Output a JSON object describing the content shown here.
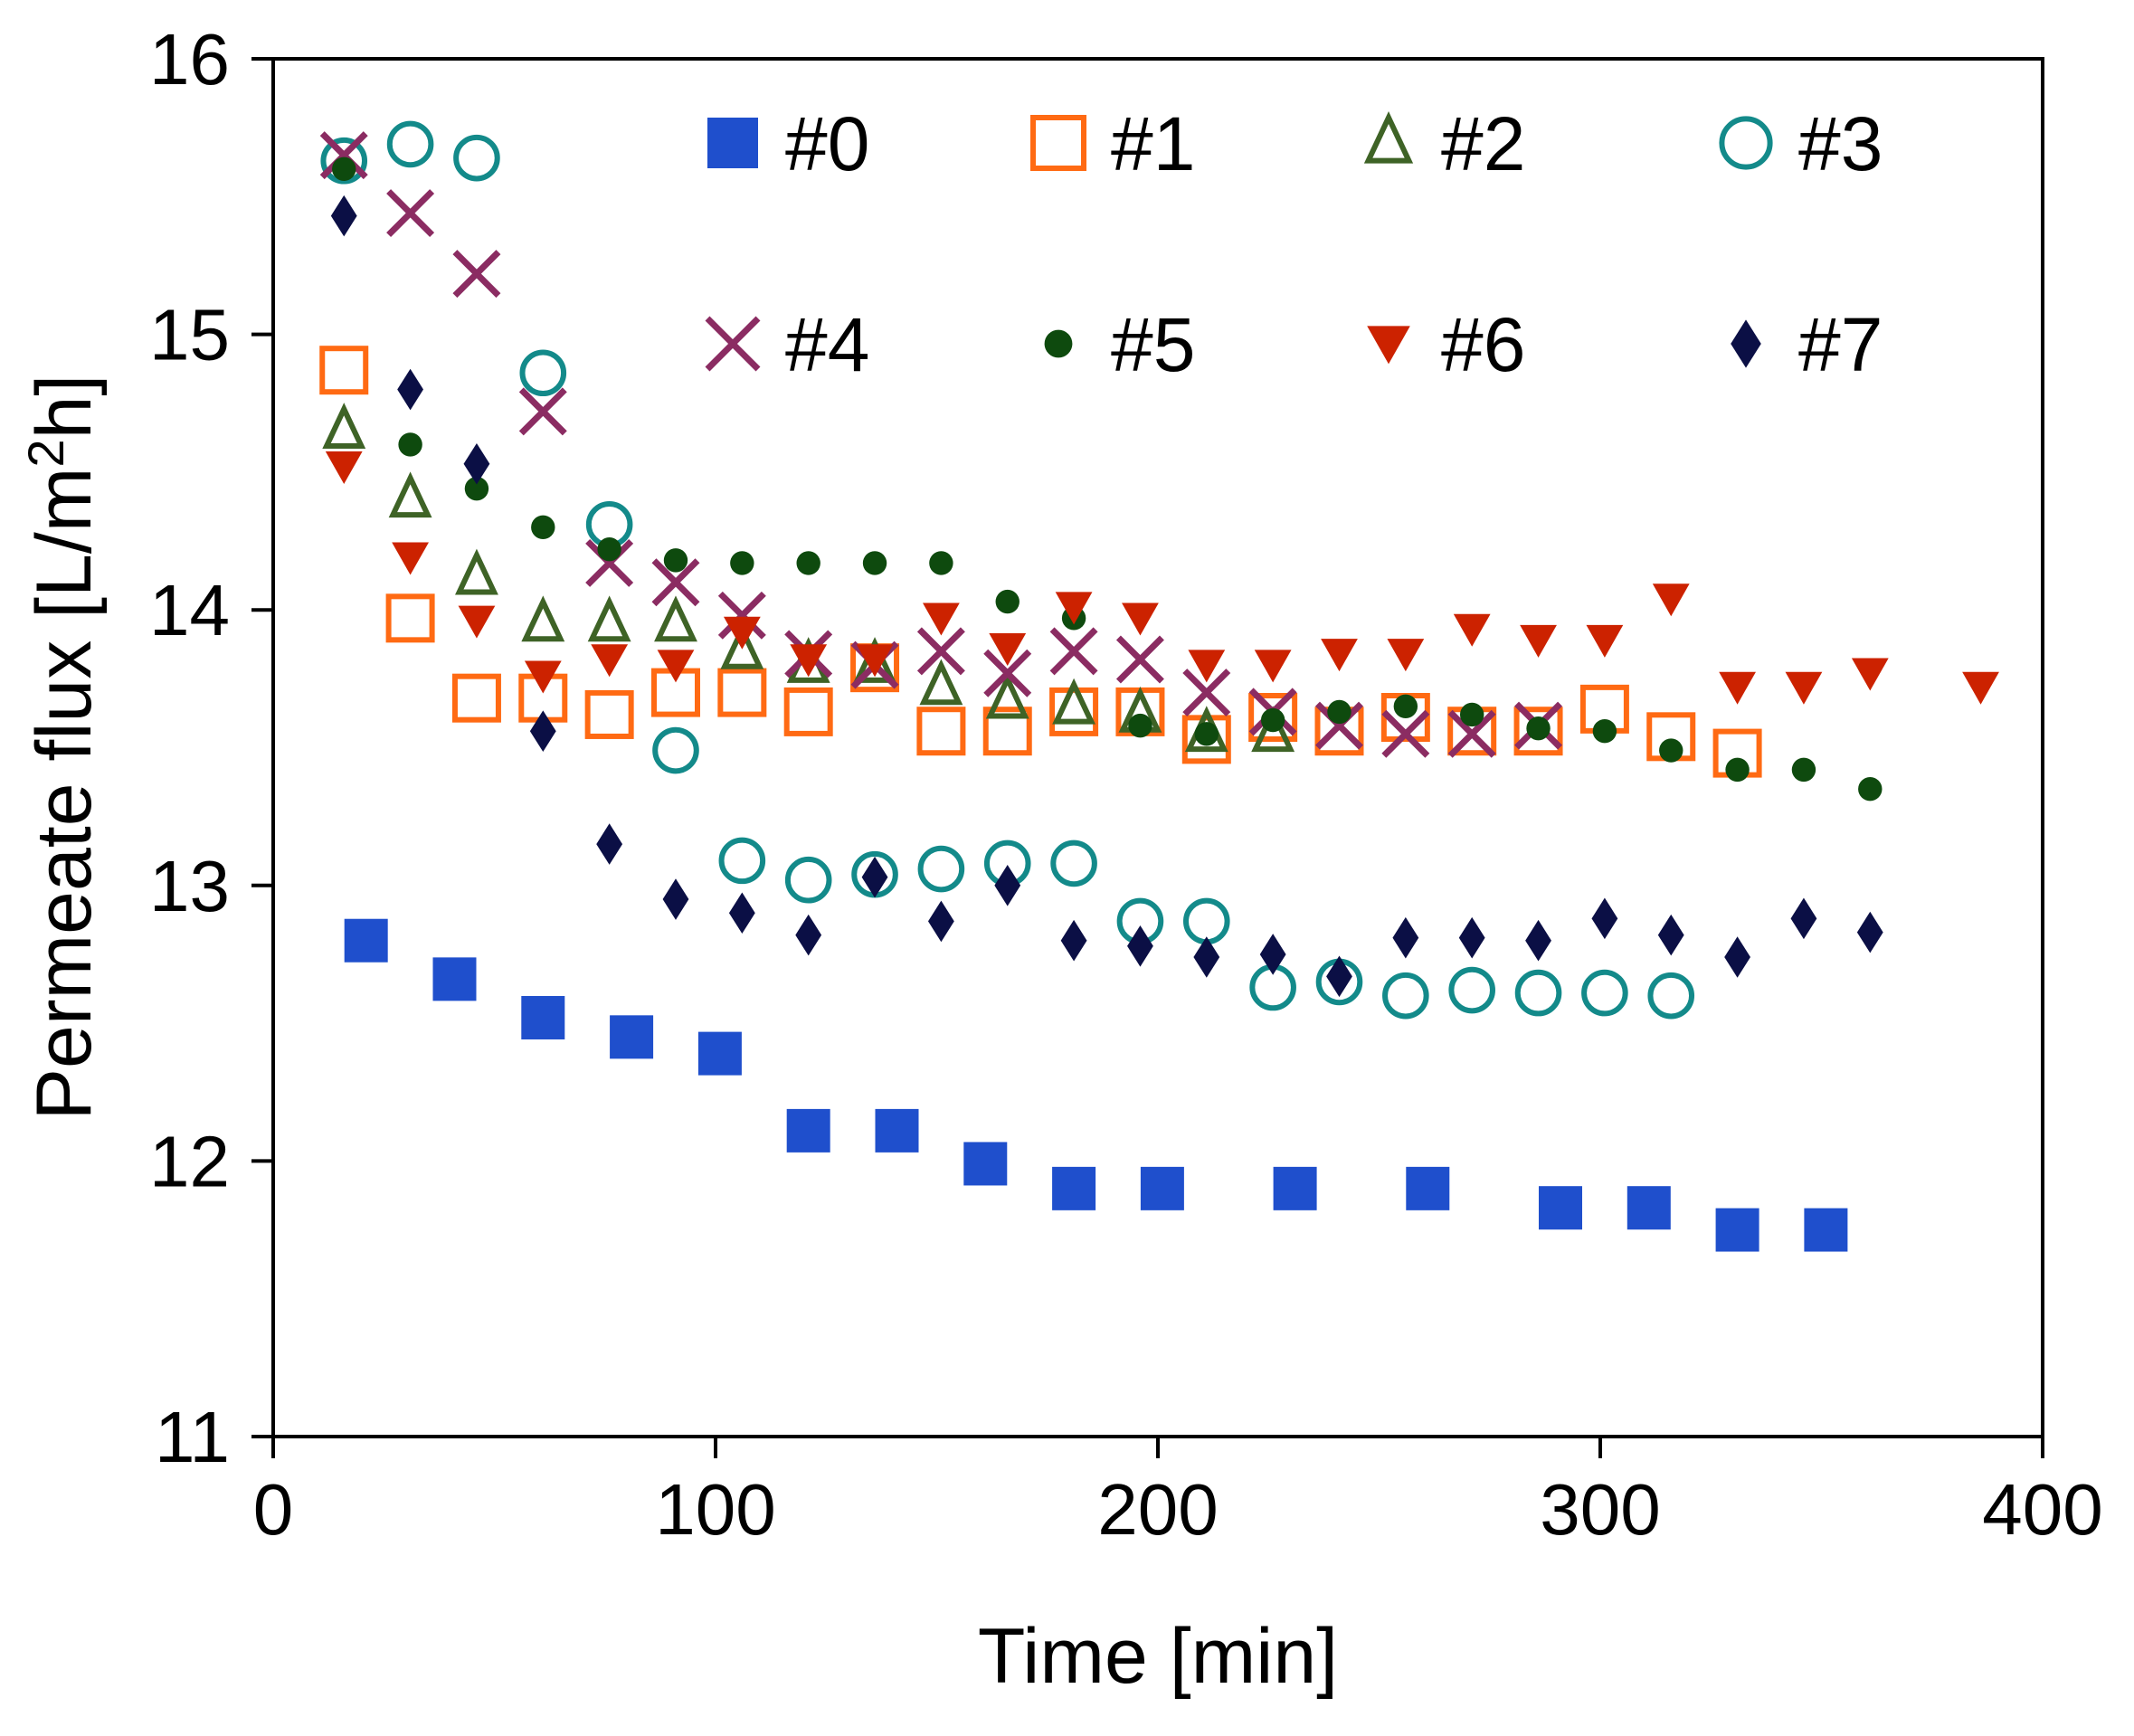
{
  "chart_data": {
    "type": "scatter",
    "title": "",
    "xlabel": "Time [min]",
    "ylabel_parts": {
      "prefix": "Permeate flux [L/m",
      "sup": "2",
      "suffix": "h]"
    },
    "xlim": [
      0,
      400
    ],
    "ylim": [
      11,
      16
    ],
    "xticks": [
      "0",
      "100",
      "200",
      "300",
      "400"
    ],
    "yticks": [
      "11",
      "12",
      "13",
      "14",
      "15",
      "16"
    ],
    "grid": false,
    "legend_position": "top-right",
    "series": [
      {
        "name": "#0",
        "marker": "square-filled",
        "color": "#1f4fcc",
        "x": [
          21,
          41,
          61,
          81,
          101,
          121,
          141,
          161,
          181,
          201,
          231,
          261,
          291,
          311,
          331,
          351
        ],
        "y": [
          12.8,
          12.66,
          12.52,
          12.45,
          12.39,
          12.11,
          12.11,
          11.99,
          11.9,
          11.9,
          11.9,
          11.9,
          11.83,
          11.83,
          11.75,
          11.75
        ]
      },
      {
        "name": "#1",
        "marker": "square-open",
        "color": "#ff6a13",
        "x": [
          16,
          31,
          46,
          61,
          76,
          91,
          106,
          121,
          136,
          151,
          166,
          181,
          196,
          211,
          226,
          241,
          256,
          271,
          286,
          301,
          316,
          331
        ],
        "y": [
          14.87,
          13.97,
          13.68,
          13.68,
          13.62,
          13.7,
          13.7,
          13.63,
          13.79,
          13.56,
          13.56,
          13.63,
          13.63,
          13.53,
          13.61,
          13.56,
          13.61,
          13.56,
          13.56,
          13.64,
          13.54,
          13.48
        ]
      },
      {
        "name": "#2",
        "marker": "triangle-open",
        "color": "#3e6326",
        "x": [
          16,
          31,
          46,
          61,
          76,
          91,
          106,
          121,
          136,
          151,
          166,
          181,
          196,
          211,
          226
        ],
        "y": [
          14.65,
          14.4,
          14.12,
          13.95,
          13.95,
          13.95,
          13.85,
          13.8,
          13.8,
          13.72,
          13.67,
          13.65,
          13.62,
          13.55,
          13.55
        ]
      },
      {
        "name": "#3",
        "marker": "circle-open",
        "color": "#138a8a",
        "x": [
          16,
          31,
          46,
          61,
          76,
          91,
          106,
          121,
          136,
          151,
          166,
          181,
          196,
          211,
          226,
          241,
          256,
          271,
          286,
          301,
          316
        ],
        "y": [
          15.63,
          15.69,
          15.64,
          14.86,
          14.31,
          13.49,
          13.09,
          13.02,
          13.04,
          13.06,
          13.08,
          13.08,
          12.87,
          12.87,
          12.63,
          12.65,
          12.6,
          12.62,
          12.61,
          12.61,
          12.6
        ]
      },
      {
        "name": "#4",
        "marker": "x",
        "color": "#8b2c62",
        "x": [
          16,
          31,
          46,
          61,
          76,
          91,
          106,
          121,
          136,
          151,
          166,
          181,
          196,
          211,
          226,
          241,
          256,
          271,
          286
        ],
        "y": [
          15.65,
          15.44,
          15.22,
          14.72,
          14.17,
          14.1,
          13.98,
          13.84,
          13.8,
          13.85,
          13.77,
          13.85,
          13.82,
          13.7,
          13.63,
          13.58,
          13.55,
          13.55,
          13.58
        ]
      },
      {
        "name": "#5",
        "marker": "circle-filled",
        "color": "#0e4a0e",
        "x": [
          16,
          31,
          46,
          61,
          76,
          91,
          106,
          121,
          136,
          151,
          166,
          181,
          196,
          211,
          226,
          241,
          256,
          271,
          286,
          301,
          316,
          331,
          346,
          361
        ],
        "y": [
          15.6,
          14.6,
          14.44,
          14.3,
          14.22,
          14.18,
          14.17,
          14.17,
          14.17,
          14.17,
          14.03,
          13.97,
          13.58,
          13.55,
          13.6,
          13.63,
          13.65,
          13.62,
          13.57,
          13.56,
          13.49,
          13.42,
          13.42,
          13.35
        ]
      },
      {
        "name": "#6",
        "marker": "triangle-down-filled",
        "color": "#cc2200",
        "x": [
          16,
          31,
          46,
          61,
          76,
          91,
          106,
          121,
          136,
          151,
          166,
          181,
          196,
          211,
          226,
          241,
          256,
          271,
          286,
          301,
          316,
          331,
          346,
          361,
          386
        ],
        "y": [
          14.52,
          14.19,
          13.96,
          13.76,
          13.82,
          13.8,
          13.92,
          13.82,
          13.82,
          13.97,
          13.86,
          14.01,
          13.97,
          13.8,
          13.8,
          13.84,
          13.84,
          13.93,
          13.89,
          13.89,
          14.04,
          13.72,
          13.72,
          13.77,
          13.72
        ]
      },
      {
        "name": "#7",
        "marker": "diamond-filled",
        "color": "#0b0f45",
        "x": [
          16,
          31,
          46,
          61,
          76,
          91,
          106,
          121,
          136,
          151,
          166,
          181,
          196,
          211,
          226,
          241,
          256,
          271,
          286,
          301,
          316,
          331,
          346,
          361
        ],
        "y": [
          15.43,
          14.8,
          14.53,
          13.56,
          13.15,
          12.95,
          12.9,
          12.82,
          13.03,
          12.87,
          13.0,
          12.8,
          12.78,
          12.74,
          12.75,
          12.67,
          12.81,
          12.81,
          12.8,
          12.88,
          12.82,
          12.74,
          12.88,
          12.83
        ]
      }
    ]
  }
}
